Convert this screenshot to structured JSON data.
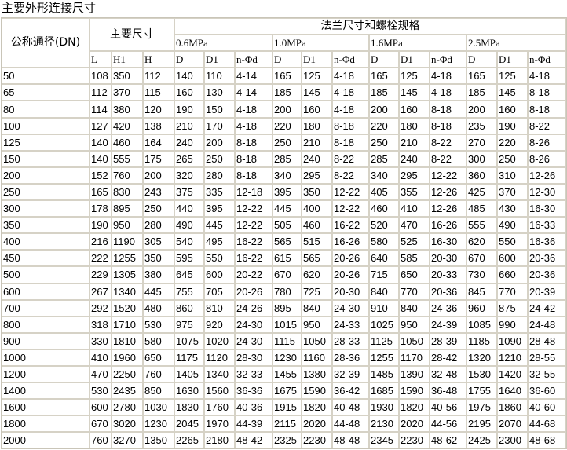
{
  "title": "主要外形连接尺寸",
  "header": {
    "dn_label": "公称通径(DN)",
    "main_dims_label": "主要尺寸",
    "flange_label": "法兰尺寸和螺栓规格",
    "pressures": [
      "0.6MPa",
      "1.0MPa",
      "1.6MPa",
      "2.5MPa"
    ],
    "main_cols": [
      "L",
      "H1",
      "H"
    ],
    "flange_cols": [
      "D",
      "D1",
      "n-Φd"
    ]
  },
  "rows": [
    [
      "50",
      "108",
      "350",
      "112",
      "140",
      "110",
      "4-14",
      "165",
      "125",
      "4-18",
      "165",
      "125",
      "4-18",
      "165",
      "125",
      "4-18"
    ],
    [
      "65",
      "112",
      "370",
      "115",
      "160",
      "130",
      "4-14",
      "185",
      "145",
      "4-18",
      "185",
      "145",
      "4-18",
      "185",
      "145",
      "8-18"
    ],
    [
      "80",
      "114",
      "380",
      "120",
      "190",
      "150",
      "4-18",
      "200",
      "160",
      "4-18",
      "200",
      "160",
      "8-18",
      "200",
      "160",
      "8-18"
    ],
    [
      "100",
      "127",
      "420",
      "138",
      "210",
      "170",
      "4-18",
      "220",
      "180",
      "8-18",
      "220",
      "180",
      "8-18",
      "235",
      "190",
      "8-22"
    ],
    [
      "125",
      "140",
      "460",
      "164",
      "240",
      "200",
      "8-18",
      "250",
      "210",
      "8-18",
      "250",
      "210",
      "8-22",
      "270",
      "220",
      "8-26"
    ],
    [
      "150",
      "140",
      "555",
      "175",
      "265",
      "250",
      "8-18",
      "285",
      "240",
      "8-22",
      "285",
      "240",
      "8-22",
      "300",
      "250",
      "8-26"
    ],
    [
      "200",
      "152",
      "760",
      "200",
      "320",
      "280",
      "8-18",
      "340",
      "295",
      "8-22",
      "340",
      "295",
      "12-22",
      "360",
      "310",
      "12-26"
    ],
    [
      "250",
      "165",
      "830",
      "243",
      "375",
      "335",
      "12-18",
      "395",
      "350",
      "12-22",
      "405",
      "355",
      "12-26",
      "425",
      "370",
      "12-30"
    ],
    [
      "300",
      "178",
      "895",
      "250",
      "440",
      "395",
      "12-22",
      "445",
      "400",
      "12-22",
      "460",
      "410",
      "12-26",
      "485",
      "430",
      "16-30"
    ],
    [
      "350",
      "190",
      "950",
      "280",
      "490",
      "445",
      "12-22",
      "505",
      "460",
      "16-22",
      "520",
      "470",
      "16-26",
      "555",
      "490",
      "16-33"
    ],
    [
      "400",
      "216",
      "1190",
      "305",
      "540",
      "495",
      "16-22",
      "565",
      "515",
      "16-26",
      "580",
      "525",
      "16-30",
      "620",
      "550",
      "16-36"
    ],
    [
      "450",
      "222",
      "1255",
      "350",
      "595",
      "550",
      "16-22",
      "615",
      "565",
      "20-26",
      "640",
      "585",
      "20-30",
      "670",
      "600",
      "20-36"
    ],
    [
      "500",
      "229",
      "1305",
      "380",
      "645",
      "600",
      "20-22",
      "670",
      "620",
      "20-26",
      "715",
      "650",
      "20-33",
      "730",
      "660",
      "20-36"
    ],
    [
      "600",
      "267",
      "1340",
      "445",
      "755",
      "705",
      "20-26",
      "780",
      "725",
      "20-30",
      "840",
      "770",
      "20-36",
      "845",
      "770",
      "20-39"
    ],
    [
      "700",
      "292",
      "1520",
      "480",
      "860",
      "810",
      "24-26",
      "895",
      "840",
      "24-30",
      "910",
      "840",
      "24-36",
      "960",
      "875",
      "24-42"
    ],
    [
      "800",
      "318",
      "1710",
      "530",
      "975",
      "920",
      "24-30",
      "1015",
      "950",
      "24-33",
      "1025",
      "950",
      "24-39",
      "1085",
      "990",
      "24-48"
    ],
    [
      "900",
      "330",
      "1810",
      "580",
      "1075",
      "1020",
      "24-30",
      "1115",
      "1050",
      "28-33",
      "1125",
      "1050",
      "28-39",
      "1185",
      "1090",
      "28-48"
    ],
    [
      "1000",
      "410",
      "1960",
      "650",
      "1175",
      "1120",
      "28-30",
      "1230",
      "1160",
      "28-36",
      "1255",
      "1170",
      "28-42",
      "1320",
      "1210",
      "28-55"
    ],
    [
      "1200",
      "470",
      "2250",
      "760",
      "1405",
      "1340",
      "32-33",
      "1455",
      "1380",
      "32-39",
      "1485",
      "1390",
      "32-48",
      "1530",
      "1420",
      "32-55"
    ],
    [
      "1400",
      "530",
      "2435",
      "850",
      "1630",
      "1560",
      "36-36",
      "1675",
      "1590",
      "36-42",
      "1685",
      "1590",
      "36-48",
      "1755",
      "1640",
      "36-60"
    ],
    [
      "1600",
      "600",
      "2780",
      "1030",
      "1830",
      "1760",
      "40-36",
      "1915",
      "1820",
      "40-48",
      "1930",
      "1820",
      "40-56",
      "1975",
      "1860",
      "40-60"
    ],
    [
      "1800",
      "670",
      "3020",
      "1230",
      "2045",
      "1970",
      "44-39",
      "2115",
      "2020",
      "44-48",
      "2130",
      "2020",
      "44-56",
      "2195",
      "2070",
      "44-68"
    ],
    [
      "2000",
      "760",
      "3270",
      "1350",
      "2265",
      "2180",
      "48-42",
      "2325",
      "2230",
      "48-48",
      "2345",
      "2230",
      "48-62",
      "2425",
      "2300",
      "48-68"
    ]
  ]
}
